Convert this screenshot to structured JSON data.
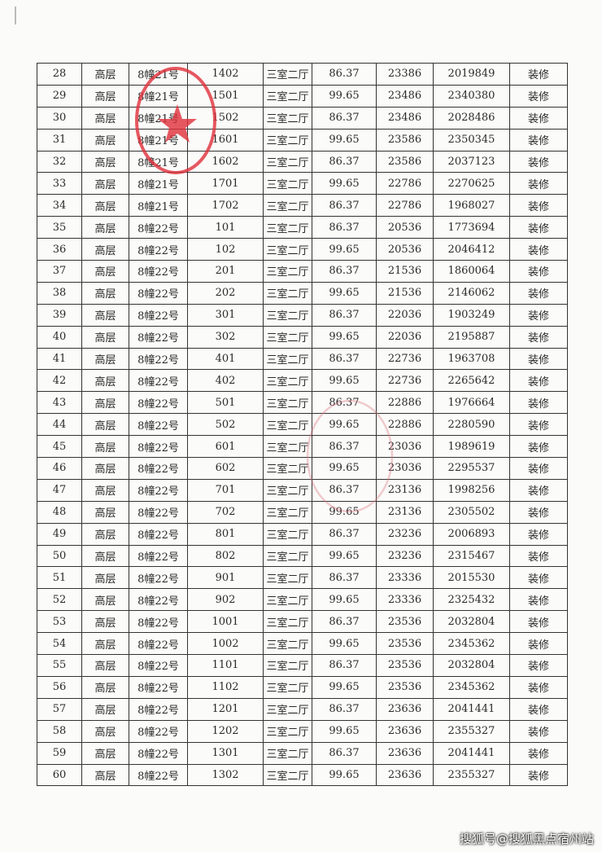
{
  "table": {
    "rows": [
      [
        "28",
        "高层",
        "8幢21号",
        "1402",
        "三室二厅",
        "86.37",
        "23386",
        "2019849",
        "装修"
      ],
      [
        "29",
        "高层",
        "8幢21号",
        "1501",
        "三室二厅",
        "99.65",
        "23486",
        "2340380",
        "装修"
      ],
      [
        "30",
        "高层",
        "8幢21号",
        "1502",
        "三室二厅",
        "86.37",
        "23486",
        "2028486",
        "装修"
      ],
      [
        "31",
        "高层",
        "8幢21号",
        "1601",
        "三室二厅",
        "99.65",
        "23586",
        "2350345",
        "装修"
      ],
      [
        "32",
        "高层",
        "8幢21号",
        "1602",
        "三室二厅",
        "86.37",
        "23586",
        "2037123",
        "装修"
      ],
      [
        "33",
        "高层",
        "8幢21号",
        "1701",
        "三室二厅",
        "99.65",
        "22786",
        "2270625",
        "装修"
      ],
      [
        "34",
        "高层",
        "8幢21号",
        "1702",
        "三室二厅",
        "86.37",
        "22786",
        "1968027",
        "装修"
      ],
      [
        "35",
        "高层",
        "8幢22号",
        "101",
        "三室二厅",
        "86.37",
        "20536",
        "1773694",
        "装修"
      ],
      [
        "36",
        "高层",
        "8幢22号",
        "102",
        "三室二厅",
        "99.65",
        "20536",
        "2046412",
        "装修"
      ],
      [
        "37",
        "高层",
        "8幢22号",
        "201",
        "三室二厅",
        "86.37",
        "21536",
        "1860064",
        "装修"
      ],
      [
        "38",
        "高层",
        "8幢22号",
        "202",
        "三室二厅",
        "99.65",
        "21536",
        "2146062",
        "装修"
      ],
      [
        "39",
        "高层",
        "8幢22号",
        "301",
        "三室二厅",
        "86.37",
        "22036",
        "1903249",
        "装修"
      ],
      [
        "40",
        "高层",
        "8幢22号",
        "302",
        "三室二厅",
        "99.65",
        "22036",
        "2195887",
        "装修"
      ],
      [
        "41",
        "高层",
        "8幢22号",
        "401",
        "三室二厅",
        "86.37",
        "22736",
        "1963708",
        "装修"
      ],
      [
        "42",
        "高层",
        "8幢22号",
        "402",
        "三室二厅",
        "99.65",
        "22736",
        "2265642",
        "装修"
      ],
      [
        "43",
        "高层",
        "8幢22号",
        "501",
        "三室二厅",
        "86.37",
        "22886",
        "1976664",
        "装修"
      ],
      [
        "44",
        "高层",
        "8幢22号",
        "502",
        "三室二厅",
        "99.65",
        "22886",
        "2280590",
        "装修"
      ],
      [
        "45",
        "高层",
        "8幢22号",
        "601",
        "三室二厅",
        "86.37",
        "23036",
        "1989619",
        "装修"
      ],
      [
        "46",
        "高层",
        "8幢22号",
        "602",
        "三室二厅",
        "99.65",
        "23036",
        "2295537",
        "装修"
      ],
      [
        "47",
        "高层",
        "8幢22号",
        "701",
        "三室二厅",
        "86.37",
        "23136",
        "1998256",
        "装修"
      ],
      [
        "48",
        "高层",
        "8幢22号",
        "702",
        "三室二厅",
        "99.65",
        "23136",
        "2305502",
        "装修"
      ],
      [
        "49",
        "高层",
        "8幢22号",
        "801",
        "三室二厅",
        "86.37",
        "23236",
        "2006893",
        "装修"
      ],
      [
        "50",
        "高层",
        "8幢22号",
        "802",
        "三室二厅",
        "99.65",
        "23236",
        "2315467",
        "装修"
      ],
      [
        "51",
        "高层",
        "8幢22号",
        "901",
        "三室二厅",
        "86.37",
        "23336",
        "2015530",
        "装修"
      ],
      [
        "52",
        "高层",
        "8幢22号",
        "902",
        "三室二厅",
        "99.65",
        "23336",
        "2325432",
        "装修"
      ],
      [
        "53",
        "高层",
        "8幢22号",
        "1001",
        "三室二厅",
        "86.37",
        "23536",
        "2032804",
        "装修"
      ],
      [
        "54",
        "高层",
        "8幢22号",
        "1002",
        "三室二厅",
        "99.65",
        "23536",
        "2345362",
        "装修"
      ],
      [
        "55",
        "高层",
        "8幢22号",
        "1101",
        "三室二厅",
        "86.37",
        "23536",
        "2032804",
        "装修"
      ],
      [
        "56",
        "高层",
        "8幢22号",
        "1102",
        "三室二厅",
        "99.65",
        "23536",
        "2345362",
        "装修"
      ],
      [
        "57",
        "高层",
        "8幢22号",
        "1201",
        "三室二厅",
        "86.37",
        "23636",
        "2041441",
        "装修"
      ],
      [
        "58",
        "高层",
        "8幢22号",
        "1202",
        "三室二厅",
        "99.65",
        "23636",
        "2355327",
        "装修"
      ],
      [
        "59",
        "高层",
        "8幢22号",
        "1301",
        "三室二厅",
        "86.37",
        "23636",
        "2041441",
        "装修"
      ],
      [
        "60",
        "高层",
        "8幢22号",
        "1302",
        "三室二厅",
        "99.65",
        "23636",
        "2355327",
        "装修"
      ]
    ]
  },
  "stamp": {
    "color": "#e0303a",
    "icon": "star-icon"
  },
  "watermark": "搜狐号@搜狐黑点宿州站"
}
